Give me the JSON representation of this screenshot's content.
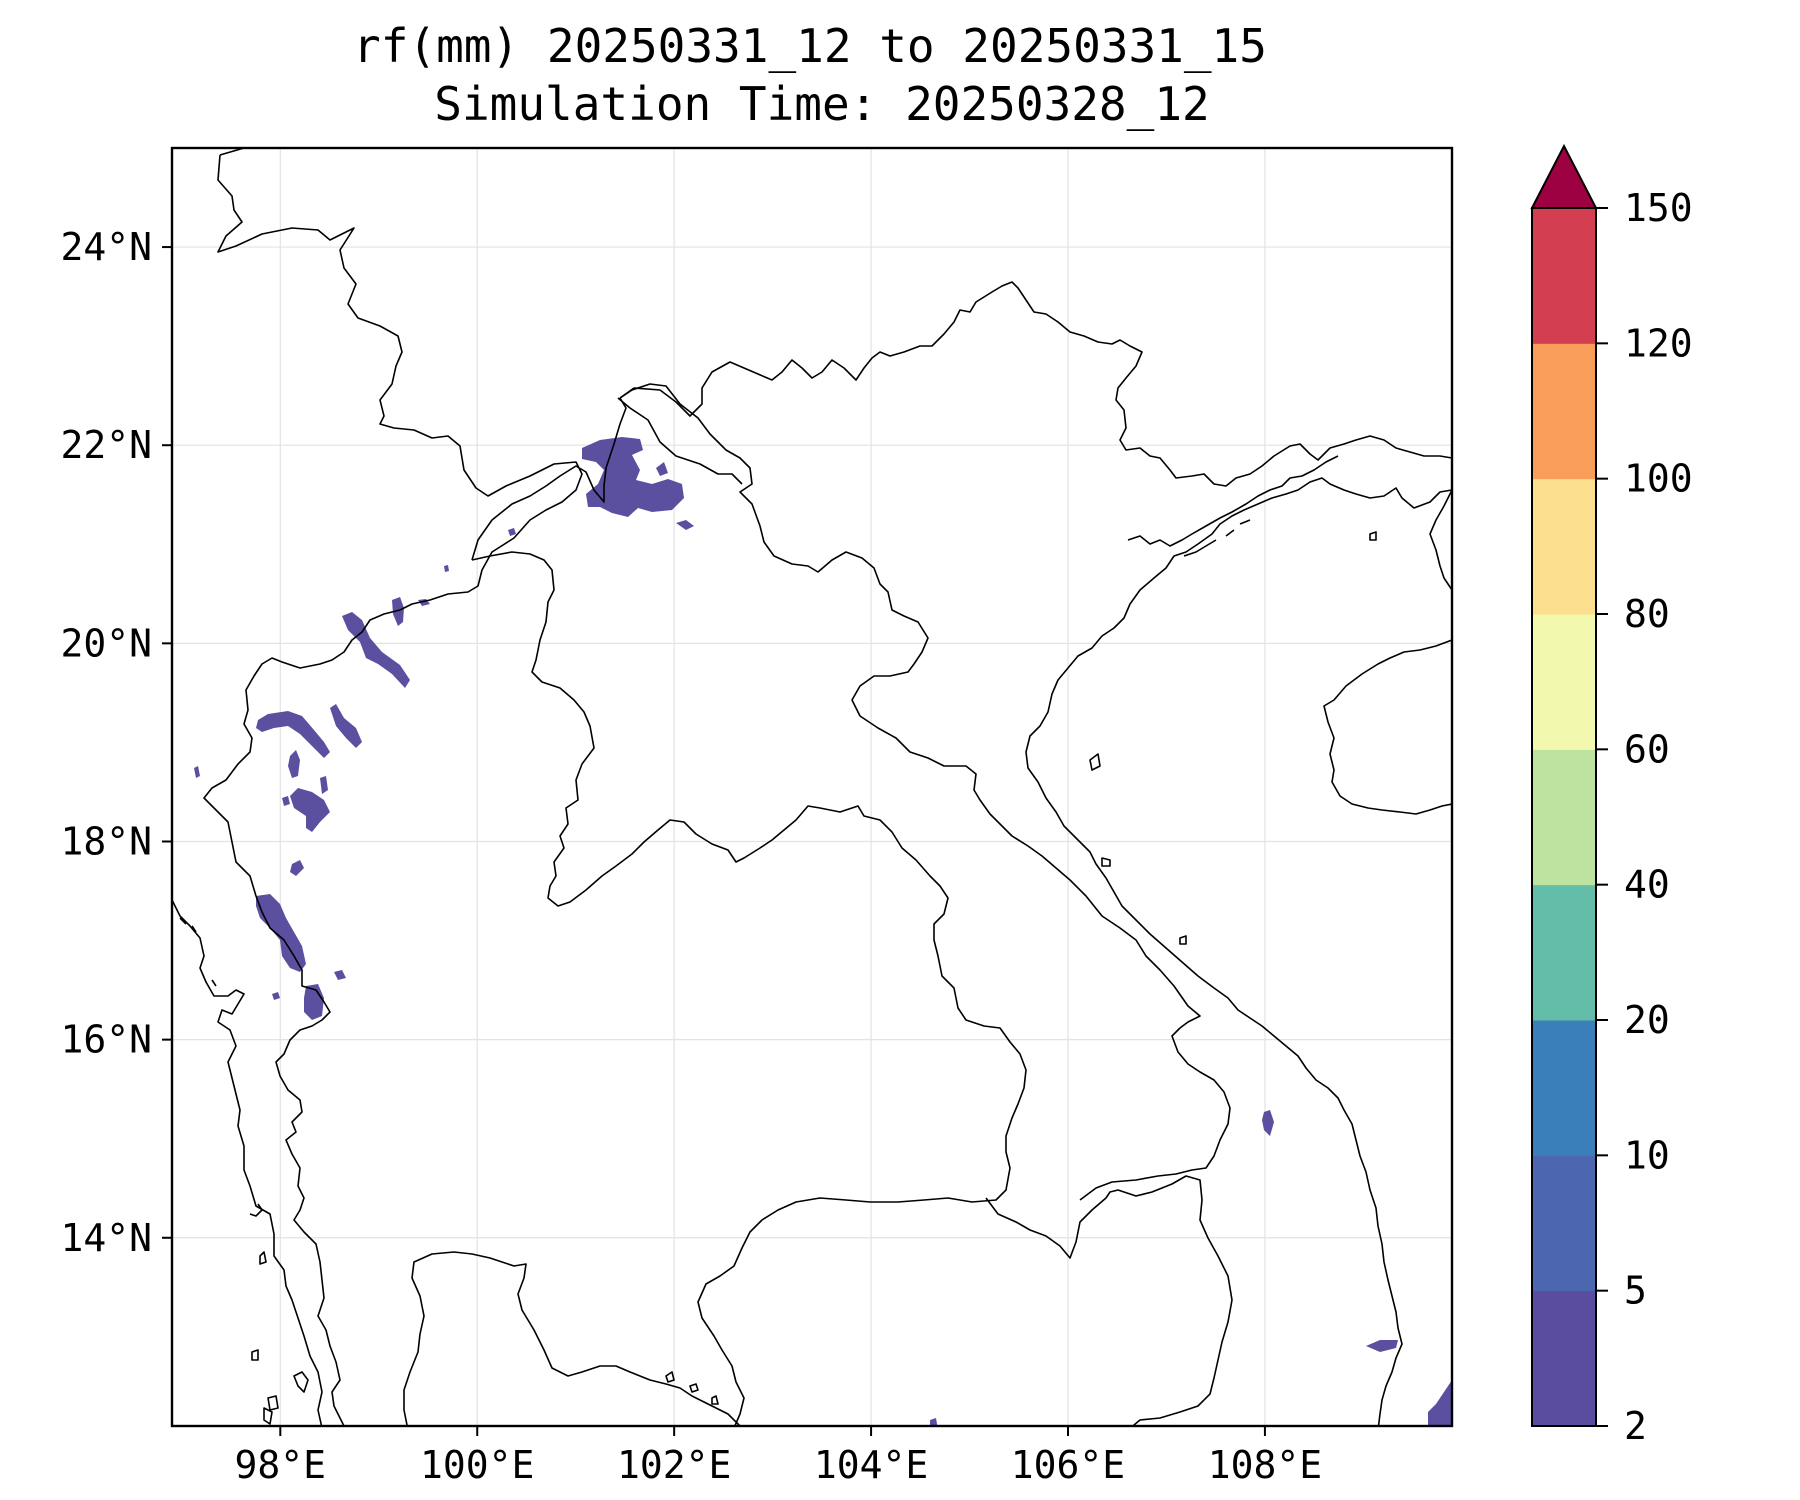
{
  "title": {
    "line1": "rf(mm) 20250331_12 to 20250331_15",
    "line2": "Simulation Time: 20250328_12"
  },
  "map": {
    "lon_range": [
      96.9,
      109.9
    ],
    "lat_range": [
      12.1,
      25.0
    ],
    "lon_ticks": [
      {
        "value": 98,
        "label": "98°E"
      },
      {
        "value": 100,
        "label": "100°E"
      },
      {
        "value": 102,
        "label": "102°E"
      },
      {
        "value": 104,
        "label": "104°E"
      },
      {
        "value": 106,
        "label": "106°E"
      },
      {
        "value": 108,
        "label": "108°E"
      }
    ],
    "lat_ticks": [
      {
        "value": 24,
        "label": "24°N"
      },
      {
        "value": 22,
        "label": "22°N"
      },
      {
        "value": 20,
        "label": "20°N"
      },
      {
        "value": 18,
        "label": "18°N"
      },
      {
        "value": 16,
        "label": "16°N"
      },
      {
        "value": 14,
        "label": "14°N"
      }
    ],
    "grid": true,
    "rain_color": "#5b4fa0"
  },
  "colorbar": {
    "levels": [
      "2",
      "5",
      "10",
      "20",
      "40",
      "60",
      "80",
      "100",
      "120",
      "150"
    ],
    "colors": [
      "#5a4da0",
      "#4c66b0",
      "#3a7fba",
      "#63bda8",
      "#bde3a0",
      "#f2f9ae",
      "#fcdf8e",
      "#f99d5a",
      "#d33e50"
    ],
    "extend_color": "#9e0142",
    "extend": "max"
  }
}
